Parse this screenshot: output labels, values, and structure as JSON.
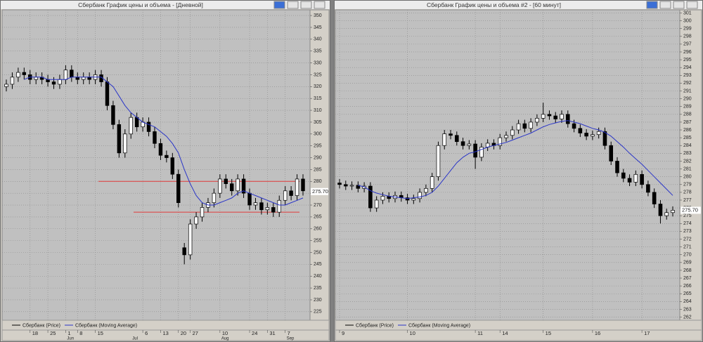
{
  "chart_data": [
    {
      "type": "candlestick",
      "title": "Сбербанк График цены и объема - [Дневной]",
      "categories": [
        null,
        null,
        null,
        null,
        "18",
        null,
        null,
        "25",
        null,
        null,
        "1",
        null,
        "8",
        null,
        null,
        "15",
        null,
        null,
        null,
        null,
        null,
        null,
        null,
        "6",
        null,
        null,
        "13",
        null,
        null,
        "20",
        null,
        "27",
        null,
        null,
        null,
        null,
        "10",
        null,
        null,
        null,
        null,
        "24",
        null,
        null,
        "31",
        null,
        null,
        "7",
        null,
        null,
        null
      ],
      "months": [
        null,
        null,
        null,
        null,
        null,
        null,
        null,
        null,
        null,
        null,
        "Jun",
        null,
        null,
        null,
        null,
        null,
        null,
        null,
        null,
        null,
        null,
        "Jul",
        null,
        null,
        null,
        null,
        null,
        null,
        null,
        null,
        null,
        null,
        null,
        null,
        null,
        null,
        "Aug",
        null,
        null,
        null,
        null,
        null,
        null,
        null,
        null,
        null,
        null,
        "Sep",
        null,
        null,
        null
      ],
      "series": [
        {
          "name": "Сбербанк (Price)",
          "color": "#000000",
          "open": [
            320,
            321,
            324,
            326,
            325,
            323,
            324,
            323,
            322,
            321,
            323,
            327,
            324,
            323,
            324,
            323,
            325,
            322,
            312,
            304,
            292,
            300,
            307,
            303,
            305,
            301,
            296,
            291,
            290,
            283,
            252,
            249,
            262,
            265,
            269,
            271,
            275,
            281,
            279,
            276,
            281,
            275,
            270,
            271,
            268,
            269,
            267,
            272,
            276,
            274,
            281
          ],
          "high": [
            323,
            326,
            328,
            328,
            327,
            326,
            326,
            325,
            324,
            325,
            329,
            329,
            326,
            326,
            326,
            327,
            327,
            324,
            314,
            306,
            302,
            309,
            309,
            307,
            307,
            303,
            298,
            293,
            292,
            285,
            254,
            264,
            267,
            271,
            273,
            277,
            283,
            283,
            281,
            283,
            283,
            277,
            273,
            273,
            271,
            271,
            274,
            278,
            278,
            283,
            283
          ],
          "low": [
            318,
            319,
            322,
            323,
            321,
            321,
            321,
            320,
            319,
            319,
            321,
            322,
            321,
            321,
            321,
            321,
            320,
            310,
            302,
            290,
            290,
            298,
            301,
            301,
            299,
            294,
            289,
            288,
            281,
            269,
            245,
            247,
            260,
            263,
            267,
            269,
            273,
            277,
            274,
            274,
            273,
            268,
            268,
            266,
            266,
            265,
            265,
            270,
            272,
            272,
            274
          ],
          "close": [
            321,
            324,
            326,
            325,
            323,
            324,
            323,
            322,
            321,
            323,
            327,
            324,
            323,
            324,
            323,
            325,
            322,
            312,
            304,
            292,
            300,
            307,
            303,
            305,
            301,
            296,
            291,
            290,
            283,
            271,
            249,
            262,
            265,
            269,
            271,
            275,
            281,
            279,
            276,
            281,
            275,
            270,
            271,
            268,
            269,
            267,
            272,
            276,
            274,
            281,
            276
          ]
        },
        {
          "name": "Сбербанк (Moving Average)",
          "color": "#2a35c8",
          "values": [
            null,
            null,
            null,
            323,
            324,
            324,
            324,
            323,
            323,
            323,
            323,
            324,
            324,
            324,
            324,
            324,
            324,
            322,
            320,
            316,
            312,
            309,
            307,
            305,
            304,
            303,
            301,
            299,
            296,
            292,
            285,
            279,
            274,
            271,
            270,
            270,
            271,
            272,
            273,
            275,
            276,
            275,
            274,
            273,
            272,
            271,
            270,
            270,
            271,
            272,
            273
          ]
        }
      ],
      "hlines": [
        {
          "value": 280,
          "color": "#e03a3a"
        },
        {
          "value": 267,
          "color": "#e03a3a"
        }
      ],
      "last_price": {
        "value": 275.7,
        "label": "275.70"
      },
      "ylim": [
        221.4,
        352.4
      ],
      "yticks": [
        225,
        230,
        235,
        240,
        245,
        250,
        255,
        260,
        265,
        270,
        275,
        280,
        285,
        290,
        295,
        300,
        305,
        310,
        315,
        320,
        325,
        330,
        335,
        340,
        345,
        350
      ],
      "grid": true
    },
    {
      "type": "candlestick",
      "title": "Сбербанк График цены и объема #2 - [60 минут]",
      "categories": [
        "9",
        null,
        null,
        null,
        null,
        null,
        null,
        null,
        null,
        null,
        null,
        "10",
        null,
        null,
        null,
        null,
        null,
        null,
        null,
        null,
        null,
        null,
        "11",
        null,
        null,
        null,
        "14",
        null,
        null,
        null,
        null,
        null,
        null,
        "15",
        null,
        null,
        null,
        null,
        null,
        null,
        null,
        "16",
        null,
        null,
        null,
        null,
        null,
        null,
        null,
        "17",
        null,
        null,
        null,
        null,
        null
      ],
      "series": [
        {
          "name": "Сбербанк (Price)",
          "color": "#000000",
          "open": [
            279.2,
            279.0,
            278.8,
            278.9,
            278.5,
            278.8,
            276.0,
            277.0,
            277.5,
            277.2,
            277.6,
            277.3,
            277.0,
            277.2,
            278.0,
            278.5,
            280.0,
            284.0,
            285.5,
            285.3,
            284.5,
            284.0,
            284.2,
            282.5,
            283.8,
            284.3,
            284.0,
            285.0,
            285.3,
            286.0,
            286.8,
            286.2,
            287.0,
            287.5,
            288.0,
            287.8,
            287.4,
            288.0,
            286.8,
            286.2,
            285.6,
            285.2,
            285.4,
            285.8,
            284.0,
            282.0,
            280.5,
            279.8,
            279.3,
            280.3,
            279.0,
            278.0,
            276.5,
            275.0,
            275.4
          ],
          "high": [
            279.7,
            279.5,
            279.4,
            279.4,
            279.3,
            279.3,
            277.5,
            278.0,
            278.0,
            278.1,
            278.1,
            277.8,
            277.7,
            278.5,
            279.0,
            280.5,
            284.5,
            286.0,
            286.0,
            285.8,
            285.0,
            284.7,
            284.7,
            284.3,
            284.8,
            284.8,
            285.5,
            285.8,
            286.5,
            287.3,
            287.3,
            287.5,
            288.0,
            289.5,
            288.5,
            288.3,
            288.5,
            288.5,
            287.3,
            286.7,
            286.1,
            285.9,
            286.3,
            286.3,
            284.5,
            282.5,
            281.0,
            280.3,
            280.8,
            280.8,
            279.5,
            278.5,
            277.0,
            275.9,
            276.2
          ],
          "low": [
            278.5,
            278.3,
            278.3,
            278.0,
            278.0,
            275.5,
            275.5,
            276.5,
            276.7,
            276.7,
            276.8,
            276.5,
            276.5,
            276.7,
            277.5,
            278.0,
            279.5,
            283.5,
            284.8,
            284.0,
            283.5,
            283.5,
            281.0,
            282.0,
            283.3,
            283.5,
            283.5,
            284.5,
            284.8,
            285.5,
            285.7,
            285.7,
            286.5,
            287.0,
            287.3,
            286.9,
            286.9,
            286.3,
            285.7,
            285.1,
            284.7,
            284.7,
            284.9,
            283.5,
            281.5,
            280.0,
            279.3,
            278.8,
            278.8,
            278.5,
            277.5,
            276.0,
            274.0,
            274.5,
            274.9
          ],
          "close": [
            279.0,
            278.8,
            278.9,
            278.5,
            278.8,
            276.0,
            277.0,
            277.5,
            277.2,
            277.6,
            277.3,
            277.0,
            277.2,
            278.0,
            278.5,
            280.0,
            284.0,
            285.5,
            285.3,
            284.5,
            284.0,
            284.2,
            282.5,
            283.8,
            284.3,
            284.0,
            285.0,
            285.3,
            286.0,
            286.8,
            286.2,
            287.0,
            287.5,
            288.0,
            287.8,
            287.4,
            288.0,
            286.8,
            286.2,
            285.6,
            285.2,
            285.4,
            285.8,
            284.0,
            282.0,
            280.5,
            279.8,
            279.3,
            280.3,
            279.0,
            278.0,
            276.5,
            275.0,
            275.4,
            275.7
          ]
        },
        {
          "name": "Сбербанк (Moving Average)",
          "color": "#2a35c8",
          "values": [
            null,
            null,
            null,
            278.9,
            278.7,
            278.2,
            277.9,
            277.7,
            277.5,
            277.4,
            277.3,
            277.2,
            277.3,
            277.4,
            277.6,
            278.0,
            278.8,
            279.8,
            280.8,
            281.8,
            282.5,
            283.0,
            283.2,
            283.5,
            283.8,
            284.0,
            284.2,
            284.4,
            284.7,
            285.0,
            285.3,
            285.6,
            286.0,
            286.4,
            286.7,
            286.9,
            287.1,
            287.2,
            287.0,
            286.8,
            286.5,
            286.2,
            286.0,
            285.7,
            285.2,
            284.5,
            283.8,
            283.0,
            282.3,
            281.6,
            280.8,
            280.0,
            279.2,
            278.4,
            277.6
          ]
        }
      ],
      "last_price": {
        "value": 275.7,
        "label": "275.70"
      },
      "ylim": [
        261.6,
        301.4
      ],
      "yticks": [
        262,
        263,
        264,
        265,
        266,
        267,
        268,
        269,
        270,
        271,
        272,
        273,
        274,
        275,
        276,
        277,
        278,
        279,
        280,
        281,
        282,
        283,
        284,
        285,
        286,
        287,
        288,
        289,
        290,
        291,
        292,
        293,
        294,
        295,
        296,
        297,
        298,
        299,
        300,
        301
      ],
      "grid": true
    }
  ]
}
